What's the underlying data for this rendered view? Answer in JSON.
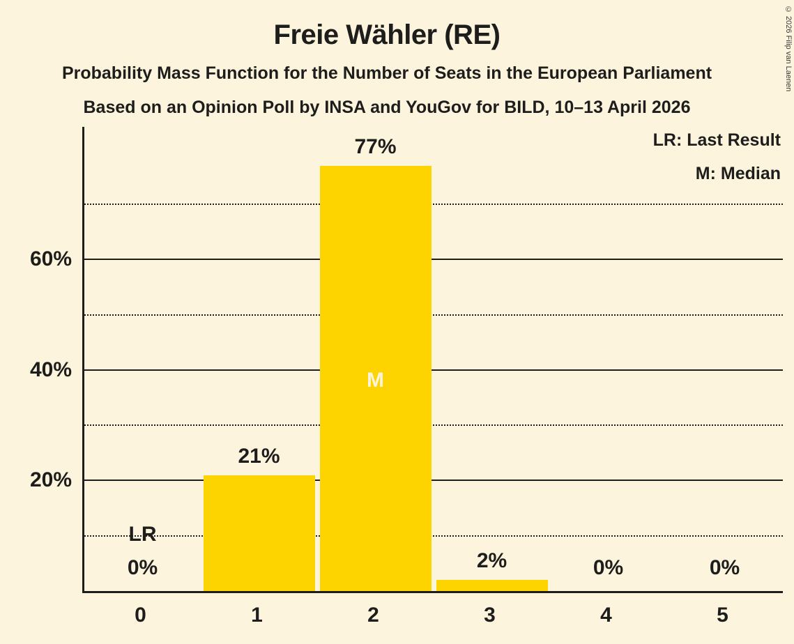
{
  "page": {
    "title": "Freie Wähler (RE)",
    "subtitle1": "Probability Mass Function for the Number of Seats in the European Parliament",
    "subtitle2": "Based on an Opinion Poll by INSA and YouGov for BILD, 10–13 April 2026",
    "copyright": "© 2026 Filip van Laenen"
  },
  "legend": {
    "lr": "LR: Last Result",
    "m": "M: Median"
  },
  "chart_data": {
    "type": "bar",
    "title": "Freie Wähler (RE)",
    "categories": [
      "0",
      "1",
      "2",
      "3",
      "4",
      "5"
    ],
    "values": [
      0,
      21,
      77,
      2,
      0,
      0
    ],
    "value_labels": [
      "0%",
      "21%",
      "77%",
      "2%",
      "0%",
      "0%"
    ],
    "bar_color": "#fdd400",
    "bar_text_color": "#fcf4dd",
    "ylim": [
      0,
      84
    ],
    "yticks": [
      {
        "label": "20%",
        "value": 20
      },
      {
        "label": "40%",
        "value": 40
      },
      {
        "label": "60%",
        "value": 60
      }
    ],
    "solid_gridlines": [
      20,
      40,
      60
    ],
    "dotted_gridlines": [
      10,
      30,
      50,
      70
    ],
    "annotations": [
      {
        "text": "LR",
        "meaning": "Last Result",
        "category_index": 0,
        "placement": "above-baseline"
      },
      {
        "text": "M",
        "meaning": "Median",
        "category_index": 2,
        "placement": "inside-bar"
      }
    ],
    "legend_position": "top-right",
    "grid": "horizontal-only"
  }
}
